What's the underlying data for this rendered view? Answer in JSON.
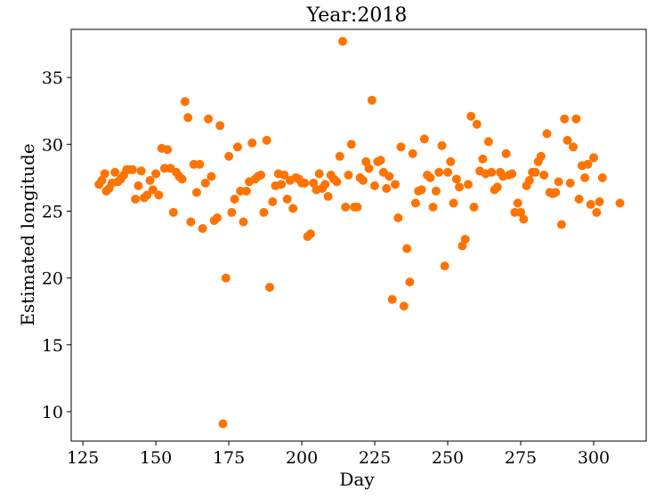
{
  "chart_data": {
    "type": "scatter",
    "title": "Year:2018",
    "xlabel": "Day",
    "ylabel": "Estimated longitude",
    "xlim": [
      121,
      318
    ],
    "ylim": [
      7.8,
      38.6
    ],
    "xticks": [
      125,
      150,
      175,
      200,
      225,
      250,
      275,
      300
    ],
    "yticks": [
      10,
      15,
      20,
      25,
      30,
      35
    ],
    "grid": false,
    "legend": "none",
    "marker_color": "#ff7300",
    "points": [
      [
        130.5,
        27.0
      ],
      [
        131.5,
        27.3
      ],
      [
        132.5,
        27.8
      ],
      [
        133.0,
        26.5
      ],
      [
        134.0,
        26.7
      ],
      [
        135.0,
        27.1
      ],
      [
        136.0,
        27.9
      ],
      [
        137.0,
        27.2
      ],
      [
        138.0,
        27.4
      ],
      [
        139.0,
        27.7
      ],
      [
        140.0,
        28.1
      ],
      [
        141.0,
        28.1
      ],
      [
        142.0,
        28.1
      ],
      [
        143.0,
        25.9
      ],
      [
        144.0,
        26.9
      ],
      [
        145.0,
        28.0
      ],
      [
        146.0,
        26.0
      ],
      [
        147.0,
        26.2
      ],
      [
        148.0,
        27.3
      ],
      [
        149.0,
        26.6
      ],
      [
        150.0,
        27.8
      ],
      [
        151.0,
        26.2
      ],
      [
        152.0,
        29.7
      ],
      [
        153.0,
        28.2
      ],
      [
        154.0,
        29.6
      ],
      [
        155.0,
        28.2
      ],
      [
        156.0,
        24.9
      ],
      [
        157.0,
        27.9
      ],
      [
        158.0,
        27.6
      ],
      [
        159.0,
        27.4
      ],
      [
        160.0,
        33.2
      ],
      [
        161.0,
        32.0
      ],
      [
        162.0,
        24.2
      ],
      [
        163.0,
        28.5
      ],
      [
        164.0,
        26.4
      ],
      [
        165.0,
        28.5
      ],
      [
        166.0,
        23.7
      ],
      [
        167.0,
        27.1
      ],
      [
        168.0,
        31.9
      ],
      [
        169.0,
        27.6
      ],
      [
        170.0,
        24.3
      ],
      [
        171.0,
        24.5
      ],
      [
        172.0,
        31.4
      ],
      [
        173.0,
        9.1
      ],
      [
        174.0,
        20.0
      ],
      [
        175.0,
        29.1
      ],
      [
        176.0,
        24.9
      ],
      [
        177.0,
        25.9
      ],
      [
        178.0,
        29.8
      ],
      [
        179.0,
        26.5
      ],
      [
        180.0,
        24.2
      ],
      [
        181.0,
        26.5
      ],
      [
        182.0,
        27.2
      ],
      [
        183.0,
        30.1
      ],
      [
        184.0,
        27.4
      ],
      [
        185.0,
        27.6
      ],
      [
        186.0,
        27.7
      ],
      [
        187.0,
        24.9
      ],
      [
        188.0,
        30.3
      ],
      [
        189.0,
        19.3
      ],
      [
        190.0,
        25.7
      ],
      [
        191.0,
        26.9
      ],
      [
        192.0,
        27.8
      ],
      [
        193.0,
        27.0
      ],
      [
        194.0,
        27.7
      ],
      [
        195.0,
        25.9
      ],
      [
        196.0,
        27.3
      ],
      [
        197.0,
        25.2
      ],
      [
        198.0,
        27.5
      ],
      [
        199.0,
        27.4
      ],
      [
        200.0,
        27.1
      ],
      [
        201.0,
        27.1
      ],
      [
        202.0,
        23.1
      ],
      [
        203.0,
        23.3
      ],
      [
        204.0,
        27.1
      ],
      [
        205.0,
        26.6
      ],
      [
        206.0,
        27.8
      ],
      [
        207.0,
        26.7
      ],
      [
        208.0,
        27.0
      ],
      [
        209.0,
        26.1
      ],
      [
        210.0,
        27.7
      ],
      [
        211.0,
        27.4
      ],
      [
        212.0,
        27.2
      ],
      [
        213.0,
        29.1
      ],
      [
        214.0,
        37.7
      ],
      [
        215.0,
        25.3
      ],
      [
        216.0,
        27.7
      ],
      [
        217.0,
        30.0
      ],
      [
        218.0,
        25.3
      ],
      [
        219.0,
        25.3
      ],
      [
        220.0,
        27.5
      ],
      [
        221.0,
        27.3
      ],
      [
        222.0,
        28.7
      ],
      [
        223.0,
        28.2
      ],
      [
        224.0,
        33.3
      ],
      [
        225.0,
        26.9
      ],
      [
        226.0,
        28.7
      ],
      [
        227.0,
        28.8
      ],
      [
        228.0,
        27.9
      ],
      [
        229.0,
        26.7
      ],
      [
        230.0,
        27.6
      ],
      [
        231.0,
        18.4
      ],
      [
        232.0,
        27.0
      ],
      [
        233.0,
        24.5
      ],
      [
        234.0,
        29.8
      ],
      [
        235.0,
        17.9
      ],
      [
        236.0,
        22.2
      ],
      [
        237.0,
        19.7
      ],
      [
        238.0,
        29.3
      ],
      [
        239.0,
        25.6
      ],
      [
        240.0,
        26.5
      ],
      [
        241.0,
        26.6
      ],
      [
        242.0,
        30.4
      ],
      [
        243.0,
        27.7
      ],
      [
        244.0,
        27.5
      ],
      [
        245.0,
        25.3
      ],
      [
        246.0,
        26.5
      ],
      [
        247.0,
        27.9
      ],
      [
        248.0,
        29.9
      ],
      [
        249.0,
        20.9
      ],
      [
        250.0,
        27.9
      ],
      [
        251.0,
        28.7
      ],
      [
        252.0,
        25.6
      ],
      [
        253.0,
        27.4
      ],
      [
        254.0,
        26.8
      ],
      [
        255.0,
        22.4
      ],
      [
        256.0,
        22.9
      ],
      [
        257.0,
        27.0
      ],
      [
        258.0,
        32.1
      ],
      [
        259.0,
        25.3
      ],
      [
        260.0,
        31.5
      ],
      [
        261.0,
        28.0
      ],
      [
        262.0,
        28.9
      ],
      [
        263.0,
        27.8
      ],
      [
        264.0,
        30.2
      ],
      [
        265.0,
        27.9
      ],
      [
        266.0,
        26.6
      ],
      [
        267.0,
        26.8
      ],
      [
        268.0,
        27.9
      ],
      [
        269.0,
        27.6
      ],
      [
        270.0,
        29.3
      ],
      [
        271.0,
        27.7
      ],
      [
        272.0,
        27.8
      ],
      [
        273.0,
        24.9
      ],
      [
        274.0,
        25.6
      ],
      [
        275.0,
        24.9
      ],
      [
        276.0,
        24.4
      ],
      [
        277.0,
        26.9
      ],
      [
        278.0,
        27.3
      ],
      [
        279.0,
        27.9
      ],
      [
        280.0,
        27.9
      ],
      [
        281.0,
        28.7
      ],
      [
        282.0,
        29.1
      ],
      [
        283.0,
        27.7
      ],
      [
        284.0,
        30.8
      ],
      [
        285.0,
        26.4
      ],
      [
        286.0,
        26.3
      ],
      [
        287.0,
        26.4
      ],
      [
        288.0,
        27.2
      ],
      [
        289.0,
        24.0
      ],
      [
        290.0,
        31.9
      ],
      [
        291.0,
        30.3
      ],
      [
        292.0,
        27.1
      ],
      [
        293.0,
        29.8
      ],
      [
        294.0,
        31.9
      ],
      [
        295.0,
        25.9
      ],
      [
        296.0,
        28.4
      ],
      [
        297.0,
        27.5
      ],
      [
        298.0,
        28.5
      ],
      [
        299.0,
        25.5
      ],
      [
        300.0,
        29.0
      ],
      [
        301.0,
        24.9
      ],
      [
        302.0,
        25.7
      ],
      [
        303.0,
        27.5
      ],
      [
        309.0,
        25.6
      ]
    ]
  }
}
